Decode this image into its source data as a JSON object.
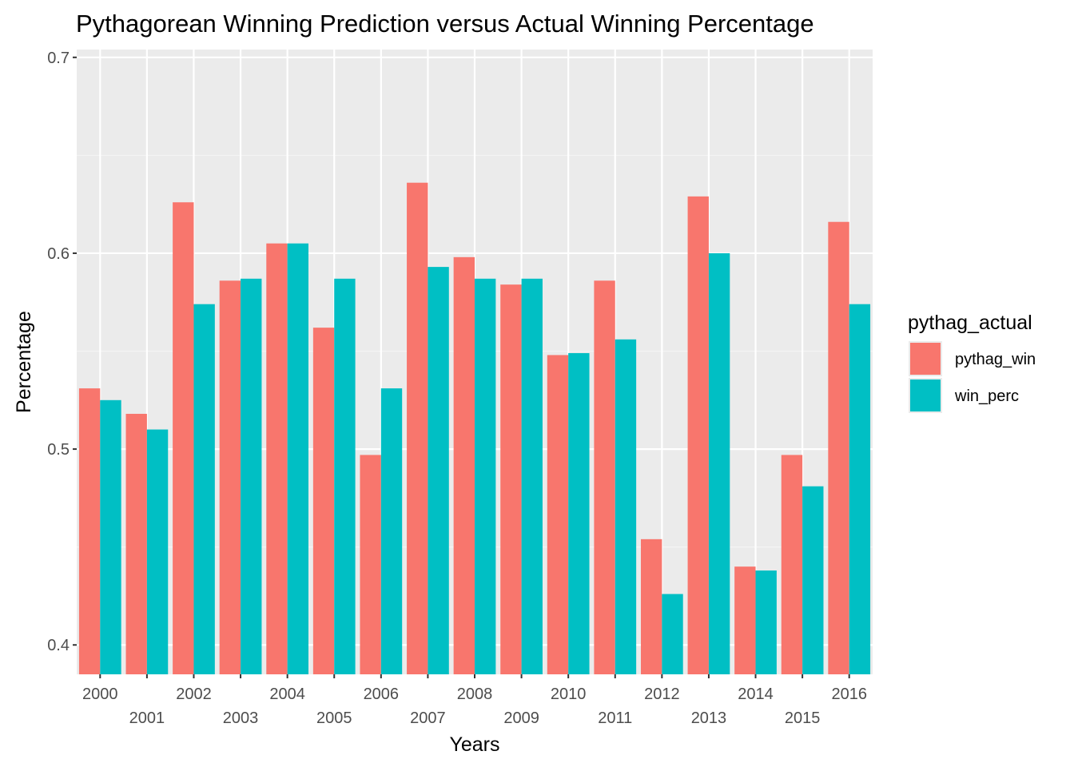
{
  "chart_data": {
    "type": "bar",
    "title": "Pythagorean Winning Prediction versus Actual Winning Percentage",
    "xlabel": "Years",
    "ylabel": "Percentage",
    "ylim": [
      0.385,
      0.704
    ],
    "yticks": [
      0.4,
      0.5,
      0.6,
      0.7
    ],
    "ytick_labels": [
      "0.4",
      "0.5",
      "0.6",
      "0.7"
    ],
    "grid": true,
    "legend_position": "right",
    "legend_title": "pythag_actual",
    "categories": [
      "2000",
      "2001",
      "2002",
      "2003",
      "2004",
      "2005",
      "2006",
      "2007",
      "2008",
      "2009",
      "2010",
      "2011",
      "2012",
      "2013",
      "2014",
      "2015",
      "2016"
    ],
    "series": [
      {
        "name": "pythag_win",
        "color": "#F8766D",
        "values": [
          0.531,
          0.518,
          0.626,
          0.586,
          0.605,
          0.562,
          0.497,
          0.636,
          0.598,
          0.584,
          0.548,
          0.586,
          0.454,
          0.629,
          0.44,
          0.497,
          0.616
        ]
      },
      {
        "name": "win_perc",
        "color": "#00BFC4",
        "values": [
          0.525,
          0.51,
          0.574,
          0.587,
          0.605,
          0.587,
          0.531,
          0.593,
          0.587,
          0.587,
          0.549,
          0.556,
          0.426,
          0.6,
          0.438,
          0.481,
          0.574
        ]
      }
    ]
  },
  "colors": {
    "panel_background": "#EBEBEB",
    "grid_major": "#FFFFFF",
    "grid_minor": "#F5F5F5",
    "tick_text": "#4D4D4D"
  }
}
